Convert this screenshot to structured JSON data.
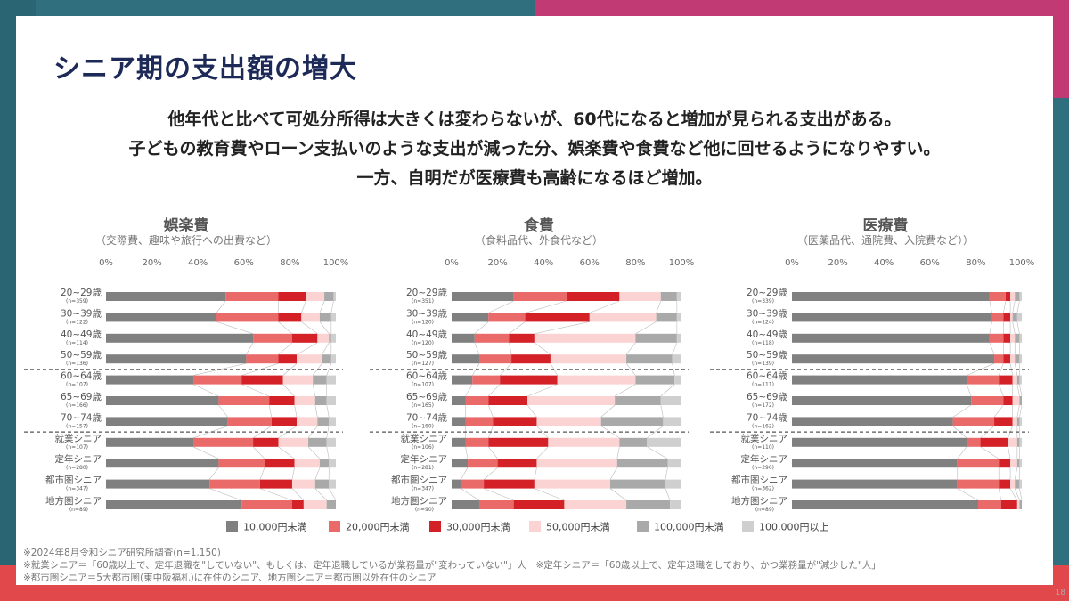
{
  "title": "シニア期の支出額の増大",
  "subtitle_lines": [
    "他年代と比べて可処分所得は大きくは変わらないが、60代になると増加が見られる支出がある。",
    "子どもの教育費やローン支払いのような支出が減った分、娯楽費や食費など他に回せるようになりやすい。",
    "一方、自明だが医療費も高齢になるほど増加。"
  ],
  "colors": [
    "#808080",
    "#ea6a6a",
    "#d42027",
    "#fbd3d3",
    "#a9a9a9",
    "#cfcfcf"
  ],
  "rows": [
    {
      "label": "20~29歳",
      "n": "(n=359)"
    },
    {
      "label": "30~39歳",
      "n": "(n=122)"
    },
    {
      "label": "40~49歳",
      "n": "(n=114)"
    },
    {
      "label": "50~59歳",
      "n": "(n=136)"
    },
    {
      "label": "60~64歳",
      "n": "(n=107)"
    },
    {
      "label": "65~69歳",
      "n": "(n=166)"
    },
    {
      "label": "70~74歳",
      "n": "(n=157)"
    },
    {
      "label": "就業シニア",
      "n": "(n=107)"
    },
    {
      "label": "定年シニア",
      "n": "(n=280)"
    },
    {
      "label": "都市圏シニア",
      "n": "(n=347)"
    },
    {
      "label": "地方圏シニア",
      "n": "(n=89)"
    }
  ],
  "chart_data": [
    {
      "type": "bar",
      "title": "娯楽費",
      "subtitle": "（交際費、趣味や旅行への出費など）",
      "xlim": [
        0,
        100
      ],
      "xticks": [
        "0%",
        "20%",
        "40%",
        "60%",
        "80%",
        "100%"
      ],
      "categories": [
        "20~29歳",
        "30~39歳",
        "40~49歳",
        "50~59歳",
        "60~64歳",
        "65~69歳",
        "70~74歳",
        "就業シニア",
        "定年シニア",
        "都市圏シニア",
        "地方圏シニア"
      ],
      "n_labels": [
        "(n=359)",
        "(n=122)",
        "(n=114)",
        "(n=136)",
        "(n=107)",
        "(n=166)",
        "(n=157)",
        "(n=107)",
        "(n=280)",
        "(n=347)",
        "(n=89)"
      ],
      "series": [
        {
          "name": "10,000円未満",
          "values": [
            52,
            48,
            64,
            61,
            38,
            49,
            53,
            38,
            49,
            45,
            59
          ]
        },
        {
          "name": "20,000円未満",
          "values": [
            23,
            27,
            17,
            14,
            21,
            22,
            19,
            26,
            20,
            22,
            22
          ]
        },
        {
          "name": "30,000円未満",
          "values": [
            12,
            10,
            11,
            8,
            18,
            11,
            11,
            11,
            13,
            14,
            5
          ]
        },
        {
          "name": "50,000円未満",
          "values": [
            8,
            8,
            5,
            11,
            13,
            9,
            9,
            13,
            11,
            10,
            10
          ]
        },
        {
          "name": "100,000円未満",
          "values": [
            4,
            5,
            1,
            4,
            6,
            5,
            5,
            8,
            4,
            6,
            4
          ]
        },
        {
          "name": "100,000円以上",
          "values": [
            1,
            2,
            2,
            2,
            4,
            4,
            3,
            4,
            3,
            3,
            0
          ]
        }
      ]
    },
    {
      "type": "bar",
      "title": "食費",
      "subtitle": "（食料品代、外食代など）",
      "xlim": [
        0,
        100
      ],
      "xticks": [
        "0%",
        "20%",
        "40%",
        "60%",
        "80%",
        "100%"
      ],
      "categories": [
        "20~29歳",
        "30~39歳",
        "40~49歳",
        "50~59歳",
        "60~64歳",
        "65~69歳",
        "70~74歳",
        "就業シニア",
        "定年シニア",
        "都市圏シニア",
        "地方圏シニア"
      ],
      "n_labels": [
        "(n=351)",
        "(n=120)",
        "(n=120)",
        "(n=127)",
        "(n=107)",
        "(n=165)",
        "(n=160)",
        "(n=106)",
        "(n=281)",
        "(n=347)",
        "(n=90)"
      ],
      "series": [
        {
          "name": "10,000円未満",
          "values": [
            27,
            16,
            10,
            12,
            9,
            6,
            6,
            6,
            7,
            4,
            12
          ]
        },
        {
          "name": "20,000円未満",
          "values": [
            23,
            16,
            15,
            14,
            12,
            10,
            12,
            10,
            13,
            10,
            15
          ]
        },
        {
          "name": "30,000円未満",
          "values": [
            23,
            28,
            11,
            17,
            25,
            17,
            19,
            26,
            17,
            22,
            22
          ]
        },
        {
          "name": "50,000円未満",
          "values": [
            18,
            29,
            44,
            33,
            34,
            38,
            28,
            31,
            35,
            33,
            27
          ]
        },
        {
          "name": "100,000円未満",
          "values": [
            7,
            9,
            18,
            20,
            17,
            20,
            27,
            12,
            22,
            24,
            19
          ]
        },
        {
          "name": "100,000円以上",
          "values": [
            2,
            2,
            2,
            4,
            3,
            9,
            8,
            15,
            6,
            7,
            5
          ]
        }
      ]
    },
    {
      "type": "bar",
      "title": "医療費",
      "subtitle": "（医薬品代、通院費、入院費など））",
      "xlim": [
        0,
        100
      ],
      "xticks": [
        "0%",
        "20%",
        "40%",
        "60%",
        "80%",
        "100%"
      ],
      "categories": [
        "20~29歳",
        "30~39歳",
        "40~49歳",
        "50~59歳",
        "60~64歳",
        "65~69歳",
        "70~74歳",
        "就業シニア",
        "定年シニア",
        "都市圏シニア",
        "地方圏シニア"
      ],
      "n_labels": [
        "(n=339)",
        "(n=124)",
        "(n=118)",
        "(n=139)",
        "(n=111)",
        "(n=172)",
        "(n=162)",
        "(n=110)",
        "(n=290)",
        "(n=362)",
        "(n=89)"
      ],
      "series": [
        {
          "name": "10,000円未満",
          "values": [
            86,
            87,
            86,
            88,
            76,
            78,
            70,
            76,
            72,
            72,
            81
          ]
        },
        {
          "name": "20,000円未満",
          "values": [
            7,
            5,
            6,
            4,
            14,
            14,
            18,
            6,
            18,
            18,
            10
          ]
        },
        {
          "name": "30,000円未満",
          "values": [
            2,
            3,
            3,
            3,
            6,
            4,
            8,
            12,
            5,
            5,
            7
          ]
        },
        {
          "name": "50,000円未満",
          "values": [
            2,
            1,
            2,
            2,
            2,
            3,
            2,
            4,
            3,
            2,
            1
          ]
        },
        {
          "name": "100,000円未満",
          "values": [
            2,
            2,
            2,
            2,
            1,
            1,
            1,
            1,
            1,
            2,
            1
          ]
        },
        {
          "name": "100,000円以上",
          "values": [
            1,
            2,
            1,
            1,
            1,
            0,
            1,
            1,
            1,
            1,
            0
          ]
        }
      ]
    }
  ],
  "legend": [
    "10,000円未満",
    "20,000円未満",
    "30,000円未満",
    "50,000円未満",
    "100,000円未満",
    "100,000円以上"
  ],
  "footnotes": [
    "※2024年8月令和シニア研究所調査(n=1,150)",
    "※就業シニア＝「60歳以上で、定年退職を\"していない\"、もしくは、定年退職しているが業務量が\"変わっていない\"」人　※定年シニア＝「60歳以上で、定年退職をしており、かつ業務量が\"減少した\"人」",
    "※都市圏シニア＝5大都市圏(東中阪福札)に在住のシニア、地方圏シニア＝都市圏以外在住のシニア"
  ],
  "page_number": "18"
}
